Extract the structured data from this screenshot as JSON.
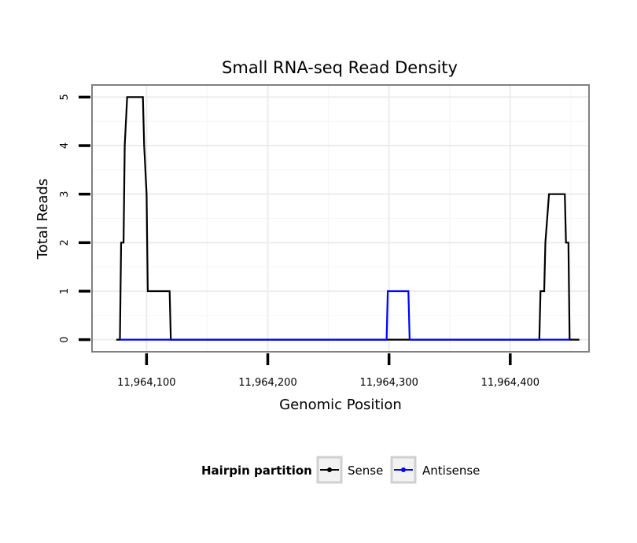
{
  "chart_data": {
    "type": "line",
    "title": "Small RNA-seq Read Density",
    "xlabel": "Genomic Position",
    "ylabel": "Total Reads",
    "xlim": [
      11964055,
      11964465
    ],
    "ylim": [
      -0.25,
      5.25
    ],
    "x_ticks": [
      11964100,
      11964200,
      11964300,
      11964400
    ],
    "x_tick_labels": [
      "11,964,100",
      "11,964,200",
      "11,964,300",
      "11,964,400"
    ],
    "y_ticks": [
      0,
      1,
      2,
      3,
      4,
      5
    ],
    "y_tick_labels": [
      "0",
      "1",
      "2",
      "3",
      "4",
      "5"
    ],
    "grid": true,
    "legend": {
      "title": "Hairpin partition",
      "placement": "bottom",
      "entries": [
        "Sense",
        "Antisense"
      ]
    },
    "series": [
      {
        "name": "Sense",
        "color": "#000000",
        "x": [
          11964075,
          11964078,
          11964079,
          11964081,
          11964082,
          11964084,
          11964097,
          11964098,
          11964100,
          11964101,
          11964119,
          11964120,
          11964424,
          11964425,
          11964428,
          11964429,
          11964432,
          11964445,
          11964446,
          11964448,
          11964449,
          11964457
        ],
        "y": [
          0,
          0,
          2,
          2,
          4,
          5,
          5,
          4,
          3,
          1,
          1,
          0,
          0,
          1,
          1,
          2,
          3,
          3,
          2,
          2,
          0,
          0
        ]
      },
      {
        "name": "Antisense",
        "color": "#0000ff",
        "x": [
          11964078,
          11964120,
          11964298,
          11964299,
          11964316,
          11964317,
          11964424,
          11964449
        ],
        "y": [
          0,
          0,
          0,
          1,
          1,
          0,
          0,
          0
        ]
      }
    ]
  }
}
